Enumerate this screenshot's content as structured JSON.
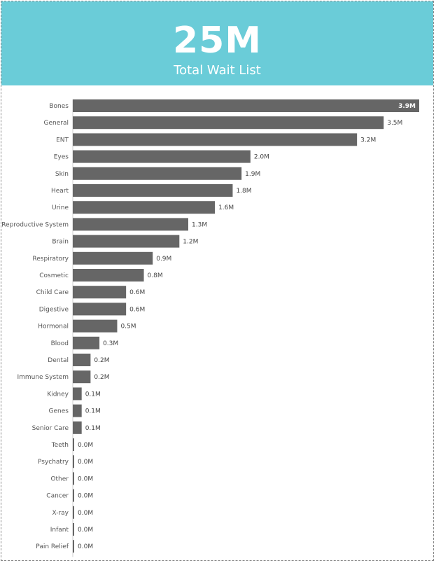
{
  "kpi": {
    "value": "25M",
    "label": "Total Wait List"
  },
  "colors": {
    "header": "#6accd8",
    "bar": "#666666",
    "label_text": "#555555",
    "value_text": "#444444",
    "value_text_inside": "#ffffff"
  },
  "chart_data": {
    "type": "bar",
    "orientation": "horizontal",
    "categories": [
      "Bones",
      "General",
      "ENT",
      "Eyes",
      "Skin",
      "Heart",
      "Urine",
      "Reproductive System",
      "Brain",
      "Respiratory",
      "Cosmetic",
      "Child Care",
      "Digestive",
      "Hormonal",
      "Blood",
      "Dental",
      "Immune System",
      "Kidney",
      "Genes",
      "Senior Care",
      "Teeth",
      "Psychatry",
      "Other",
      "Cancer",
      "X-ray",
      "Infant",
      "Pain Relief"
    ],
    "values": [
      3.9,
      3.5,
      3.2,
      2.0,
      1.9,
      1.8,
      1.6,
      1.3,
      1.2,
      0.9,
      0.8,
      0.6,
      0.6,
      0.5,
      0.3,
      0.2,
      0.2,
      0.1,
      0.1,
      0.1,
      0.0,
      0.0,
      0.0,
      0.0,
      0.0,
      0.0,
      0.0
    ],
    "value_labels": [
      "3.9M",
      "3.5M",
      "3.2M",
      "2.0M",
      "1.9M",
      "1.8M",
      "1.6M",
      "1.3M",
      "1.2M",
      "0.9M",
      "0.8M",
      "0.6M",
      "0.6M",
      "0.5M",
      "0.3M",
      "0.2M",
      "0.2M",
      "0.1M",
      "0.1M",
      "0.1M",
      "0.0M",
      "0.0M",
      "0.0M",
      "0.0M",
      "0.0M",
      "0.0M",
      "0.0M"
    ],
    "unit": "M",
    "xlim": [
      0,
      3.9
    ],
    "grid": false,
    "legend": "none"
  }
}
